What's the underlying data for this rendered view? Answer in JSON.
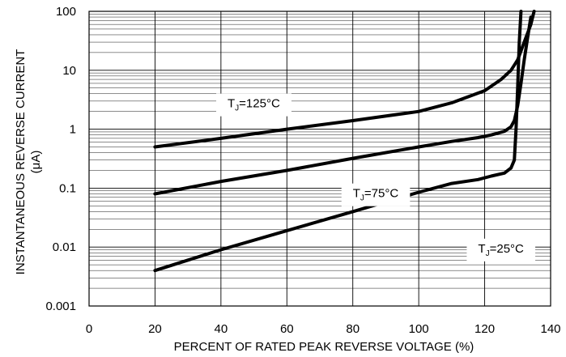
{
  "chart_data": {
    "type": "line",
    "xlabel": "PERCENT OF RATED PEAK REVERSE VOLTAGE (%)",
    "ylabel_line1": "INSTANTANEOUS REVERSE CURRENT",
    "ylabel_line2": "(μA)",
    "xlim": [
      0,
      140
    ],
    "ylim": [
      0.001,
      100
    ],
    "yscale": "log",
    "grid": true,
    "x_ticks": [
      "0",
      "20",
      "40",
      "60",
      "80",
      "100",
      "120",
      "140"
    ],
    "y_ticks": [
      "0.001",
      "0.01",
      "0.1",
      "1",
      "10",
      "100"
    ],
    "series": [
      {
        "label": "T_J=125°C",
        "x": [
          20,
          40,
          60,
          80,
          100,
          110,
          120,
          125,
          128,
          130,
          132,
          134,
          135
        ],
        "y": [
          0.5,
          0.7,
          1.0,
          1.4,
          2.0,
          2.8,
          4.5,
          7.0,
          10,
          15,
          30,
          60,
          100
        ]
      },
      {
        "label": "T_J=75°C",
        "x": [
          20,
          40,
          60,
          80,
          100,
          110,
          118,
          122,
          126,
          128,
          129,
          130,
          131,
          132,
          133,
          134
        ],
        "y": [
          0.08,
          0.13,
          0.2,
          0.32,
          0.5,
          0.62,
          0.72,
          0.8,
          0.92,
          1.1,
          1.4,
          2.5,
          6,
          15,
          35,
          80
        ]
      },
      {
        "label": "T_J=25°C",
        "x": [
          20,
          40,
          60,
          80,
          100,
          110,
          118,
          122,
          126,
          128,
          129,
          129.5,
          130,
          130.5,
          131
        ],
        "y": [
          0.004,
          0.009,
          0.019,
          0.04,
          0.085,
          0.12,
          0.14,
          0.16,
          0.18,
          0.22,
          0.3,
          1,
          5,
          30,
          100
        ]
      }
    ],
    "annotations": [
      {
        "base": "T",
        "sub": "J",
        "rest": "=125°C",
        "x": 42,
        "y": 2.75
      },
      {
        "base": "T",
        "sub": "J",
        "rest": "=75°C",
        "x": 80,
        "y": 0.082
      },
      {
        "base": "T",
        "sub": "J",
        "rest": "=25°C",
        "x": 118,
        "y": 0.0095
      }
    ]
  }
}
